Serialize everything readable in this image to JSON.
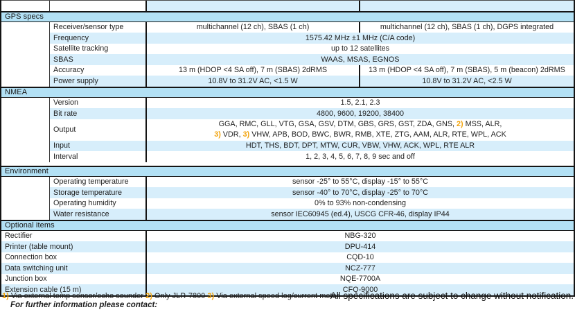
{
  "colors": {
    "section_bar": "#b3e1f5",
    "row_stripe": "#d7eefb",
    "footnote_marker": "#f2a30b",
    "border": "#141414"
  },
  "sections": {
    "gps": {
      "title": "GPS specs",
      "rows": {
        "receiver": {
          "label": "Receiver/sensor type",
          "left": "multichannel (12 ch), SBAS (1 ch)",
          "right": "multichannel (12 ch), SBAS (1 ch), DGPS integrated"
        },
        "frequency": {
          "label": "Frequency",
          "value": "1575.42 MHz ±1 MHz (C/A code)"
        },
        "satellite": {
          "label": "Satellite tracking",
          "value": "up to 12 satellites"
        },
        "sbas": {
          "label": "SBAS",
          "value": "WAAS, MSAS, EGNOS"
        },
        "accuracy": {
          "label": "Accuracy",
          "left": "13 m (HDOP <4 SA off), 7 m (SBAS) 2dRMS",
          "right": "13 m (HDOP <4 SA off), 7 m (SBAS), 5 m (beacon) 2dRMS"
        },
        "power": {
          "label": "Power supply",
          "left": "10.8V to 31.2V AC, <1.5 W",
          "right": "10.8V to 31.2V AC, <2.5 W"
        }
      }
    },
    "nmea": {
      "title": "NMEA",
      "rows": {
        "version": {
          "label": "Version",
          "value": "1.5, 2.1, 2.3"
        },
        "bitrate": {
          "label": "Bit rate",
          "value": "4800, 9600, 19200, 38400"
        },
        "output": {
          "label": "Output",
          "line1_a": "GGA, RMC, GLL, VTG, GSA, GSV, DTM, GBS, GRS, GST, ZDA, GNS, ",
          "line1_marker": "2)",
          "line1_b": " MSS, ALR,",
          "line2_marker1": "3)",
          "line2_a": " VDR, ",
          "line2_marker2": "3)",
          "line2_b": " VHW, APB, BOD, BWC, BWR, RMB, XTE, ZTG, AAM, ALR, RTE, WPL, ACK"
        },
        "input": {
          "label": "Input",
          "value": "HDT, THS, BDT, DPT, MTW, CUR, VBW, VHW, ACK, WPL, RTE ALR"
        },
        "interval": {
          "label": "Interval",
          "value": "1, 2, 3, 4, 5, 6, 7, 8, 9 sec and off"
        }
      }
    },
    "env": {
      "title": "Environment",
      "rows": {
        "op_temp": {
          "label": "Operating temperature",
          "value": "sensor -25° to 55°C, display -15° to 55°C"
        },
        "st_temp": {
          "label": "Storage temperature",
          "value": "sensor -40° to 70°C, display -25° to 70°C"
        },
        "humidity": {
          "label": "Operating humidity",
          "value": "0% to 93% non-condensing"
        },
        "water": {
          "label": "Water resistance",
          "value": "sensor IEC60945 (ed.4), USCG CFR-46, display IP44"
        }
      }
    },
    "opt": {
      "title": "Optional items",
      "rows": {
        "rectifier": {
          "label": "Rectifier",
          "value": "NBG-320"
        },
        "printer": {
          "label": "Printer (table mount)",
          "value": "DPU-414"
        },
        "connection": {
          "label": "Connection box",
          "value": "CQD-10"
        },
        "switching": {
          "label": "Data switching unit",
          "value": "NCZ-777"
        },
        "junction": {
          "label": "Junction box",
          "value": "NQE-7700A"
        },
        "extension": {
          "label": "Extension cable (15 m)",
          "value": "CFQ-9000"
        }
      }
    }
  },
  "footer": {
    "fn1_marker": "1)",
    "fn1_text": " Via external temp sensor/echo sounder ",
    "fn2_marker": "2)",
    "fn2_text": " Only JLR-7800 ",
    "fn3_marker": "3)",
    "fn3_text": " Via external speed log/current meter",
    "contact": "For further information please contact:",
    "disclaimer": "All specifications are subject to change without notification."
  }
}
